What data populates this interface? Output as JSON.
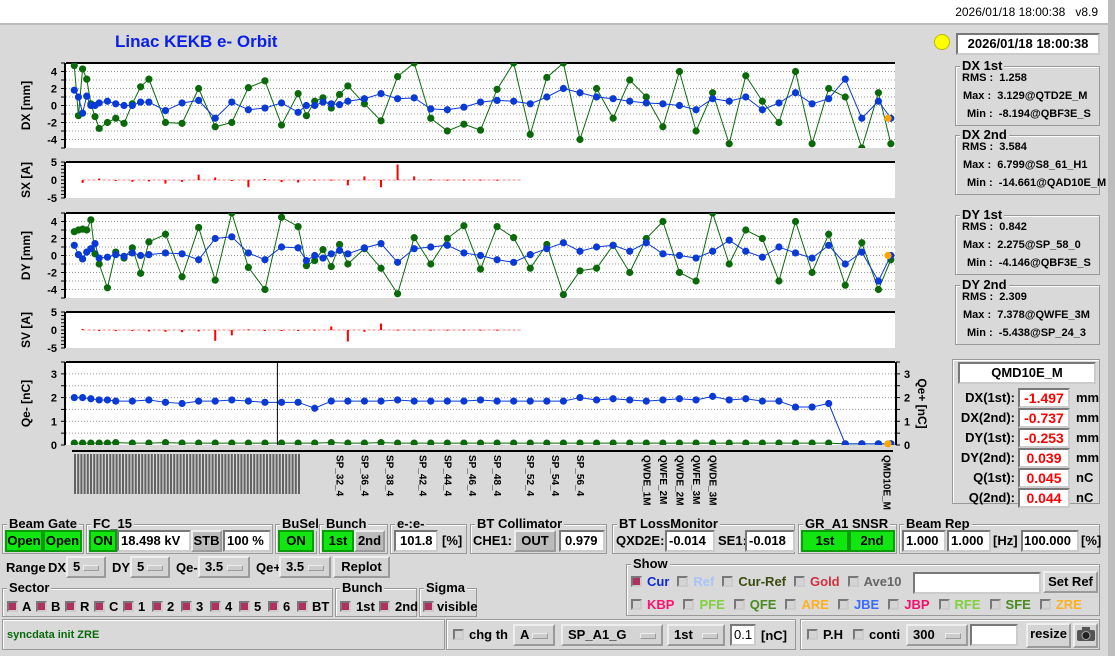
{
  "header": {
    "timestamp": "2026/01/18 18:00:38",
    "version": "v8.9"
  },
  "title": "Linac KEKB e- Orbit",
  "status_lamp_color": "#ffff00",
  "timestamp_box": "2026/01/18 18:00:38",
  "stats": [
    {
      "title": "DX 1st",
      "rms": "1.258",
      "max": "3.129@QTD2E_M",
      "min": "-8.194@QBF3E_S"
    },
    {
      "title": "DX 2nd",
      "rms": "3.584",
      "max": "6.799@S8_61_H1",
      "min": "-14.661@QAD10E_M"
    },
    {
      "title": "DY 1st",
      "rms": "0.842",
      "max": "2.275@SP_58_0",
      "min": "-4.146@QBF3E_S"
    },
    {
      "title": "DY 2nd",
      "rms": "2.309",
      "max": "7.378@QWFE_3M",
      "min": "-5.438@SP_24_3"
    }
  ],
  "stat_labels": {
    "rms": "RMS :",
    "max": "Max :",
    "min": "Min :"
  },
  "monitor": {
    "name": "QMD10E_M",
    "rows": [
      {
        "label": "DX(1st):",
        "value": "-1.497",
        "unit": "mm"
      },
      {
        "label": "DX(2nd):",
        "value": "-0.737",
        "unit": "mm"
      },
      {
        "label": "DY(1st):",
        "value": "-0.253",
        "unit": "mm"
      },
      {
        "label": "DY(2nd):",
        "value": "0.039",
        "unit": "mm"
      },
      {
        "label": "Q(1st):",
        "value": "0.045",
        "unit": "nC"
      },
      {
        "label": "Q(2nd):",
        "value": "0.044",
        "unit": "nC"
      }
    ]
  },
  "chart_data": [
    {
      "type": "line",
      "id": "dx",
      "ylabel": "DX [mm]",
      "ylim": [
        -5,
        5
      ],
      "yticks": [
        -4,
        -2,
        0,
        2,
        4
      ],
      "grid": true,
      "xlim": [
        0,
        100
      ],
      "x": [
        1,
        1.5,
        2,
        2.5,
        3,
        3.5,
        4,
        5,
        6,
        7,
        8,
        9,
        10,
        12,
        14,
        16,
        18,
        20,
        22,
        24,
        26,
        28,
        29,
        30,
        31,
        32,
        33,
        34,
        36,
        38,
        40,
        42,
        44,
        46,
        48,
        50,
        52,
        54,
        56,
        58,
        60,
        62,
        64,
        66,
        68,
        70,
        72,
        74,
        76,
        78,
        80,
        82,
        84,
        86,
        88,
        90,
        92,
        94,
        96,
        98,
        99.5
      ],
      "series": [
        {
          "color": "#0a3ad6",
          "values": [
            1.8,
            1,
            -0.9,
            1.1,
            0,
            0,
            0.3,
            0.5,
            0.2,
            0,
            0,
            0.4,
            0.4,
            -0.6,
            0.3,
            0.6,
            -1.5,
            0.4,
            -0.5,
            -0.3,
            0.3,
            -0.8,
            0,
            0,
            0.4,
            0.2,
            0.1,
            0.5,
            0.8,
            1.4,
            0.8,
            0.9,
            -0.4,
            -0.5,
            -0.2,
            0.4,
            0.6,
            0.5,
            0.2,
            1,
            2,
            1.5,
            1,
            0.8,
            0.5,
            0.3,
            0.2,
            0,
            -0.5,
            0.8,
            0.5,
            1,
            -0.5,
            0.3,
            1.5,
            0.2,
            0.8,
            3.1,
            -1.5,
            0.5,
            -1.5
          ]
        },
        {
          "color": "#0a6a0a",
          "values": [
            4.7,
            -1.2,
            4.3,
            3.1,
            0.2,
            -1.3,
            -2.7,
            -2,
            -1.5,
            -2.1,
            0.2,
            2.2,
            3.1,
            -2,
            -2.1,
            2,
            -2.5,
            -2,
            2.1,
            2.9,
            -2.3,
            1.4,
            -1.2,
            0.5,
            0.9,
            -0.3,
            1.3,
            2.3,
            0.2,
            -1.8,
            3.4,
            5,
            -1.5,
            -3,
            -2.2,
            -2.9,
            1.9,
            5,
            -3.4,
            3.3,
            5,
            -4,
            2,
            -1.5,
            3,
            1,
            -2.5,
            4,
            -3,
            1.5,
            -4.5,
            3.5,
            0.5,
            -2,
            4,
            -4.5,
            2,
            1,
            -5,
            1.5,
            -4.5
          ]
        }
      ]
    },
    {
      "type": "bar",
      "id": "sx",
      "ylabel": "SX [A]",
      "ylim": [
        -5,
        5
      ],
      "yticks": [
        -5,
        0,
        5
      ],
      "xlim": [
        0,
        100
      ],
      "x": [
        2,
        4,
        6,
        8,
        10,
        12,
        14,
        16,
        18,
        20,
        22,
        24,
        26,
        28,
        30,
        32,
        34,
        36,
        38,
        40,
        42,
        44,
        46,
        48,
        50,
        52,
        54,
        56,
        58,
        60,
        62,
        64,
        66,
        68,
        70,
        72,
        74,
        76,
        78,
        80,
        82,
        84,
        86,
        88,
        90,
        92,
        94,
        96,
        98
      ],
      "series": [
        {
          "color": "#ff0000",
          "values": [
            -0.8,
            0.4,
            -0.2,
            -0.5,
            -0.4,
            -1,
            -0.5,
            1.5,
            0.7,
            -0.2,
            -2,
            0.3,
            -0.6,
            -0.7,
            0.1,
            0.1,
            -1.5,
            1,
            -2,
            4.3,
            1,
            0.2,
            0.1,
            0.1,
            0.1,
            0.1,
            0,
            0,
            0,
            0,
            0,
            0,
            0,
            0,
            0,
            0,
            0,
            0,
            0,
            0,
            0,
            0,
            0,
            0,
            0,
            0,
            0,
            0,
            0
          ]
        }
      ]
    },
    {
      "type": "line",
      "id": "dy",
      "ylabel": "DY [mm]",
      "ylim": [
        -5,
        5
      ],
      "yticks": [
        -4,
        -2,
        0,
        2,
        4
      ],
      "grid": true,
      "xlim": [
        0,
        100
      ],
      "x": [
        1,
        1.5,
        2,
        2.5,
        3,
        3.5,
        4,
        5,
        6,
        7,
        8,
        9,
        10,
        12,
        14,
        16,
        18,
        20,
        22,
        24,
        26,
        28,
        29,
        30,
        31,
        32,
        33,
        34,
        36,
        38,
        40,
        42,
        44,
        46,
        48,
        50,
        52,
        54,
        56,
        58,
        60,
        62,
        64,
        66,
        68,
        70,
        72,
        74,
        76,
        78,
        80,
        82,
        84,
        86,
        88,
        90,
        92,
        94,
        96,
        98,
        99.5
      ],
      "series": [
        {
          "color": "#0a3ad6",
          "values": [
            1.2,
            0.1,
            -0.4,
            0.4,
            0.8,
            1.4,
            -0.3,
            -0.2,
            0.1,
            -0.1,
            0.3,
            0,
            0.1,
            0.3,
            0.2,
            -0.5,
            2,
            2.2,
            0.3,
            -0.5,
            1,
            0.9,
            -0.6,
            0,
            -0.3,
            0.2,
            0.6,
            0.2,
            0.9,
            1.4,
            -0.8,
            0.8,
            1,
            1.2,
            0.3,
            0,
            -0.5,
            -0.8,
            0.1,
            0.8,
            1.5,
            0.5,
            1,
            1.2,
            0.5,
            1.5,
            0.2,
            0,
            -0.3,
            0.5,
            1.8,
            0.5,
            -0.2,
            1,
            0.3,
            -0.3,
            1.2,
            -1,
            0.4,
            -3,
            0
          ]
        },
        {
          "color": "#0a6a0a",
          "values": [
            2.8,
            3,
            3.1,
            3,
            4.2,
            0.2,
            -1,
            -3.8,
            0.4,
            -0.3,
            0.9,
            -2.1,
            1.6,
            2.5,
            -2.5,
            3.3,
            -2.9,
            5,
            -1.4,
            -4,
            4.5,
            3.4,
            -1.2,
            -0.6,
            0.7,
            -1.3,
            1.3,
            -1,
            0.8,
            -1.5,
            -4.5,
            2.1,
            -1,
            2,
            3.5,
            -1.6,
            3.4,
            2.1,
            -1.5,
            1.3,
            -4.6,
            -1.8,
            -1.5,
            1.2,
            -2,
            2,
            4,
            -2,
            -3,
            5,
            -1,
            3,
            2,
            -3,
            4,
            -2,
            2.5,
            -3.5,
            1.5,
            -4,
            -0.5
          ]
        }
      ]
    },
    {
      "type": "bar",
      "id": "sv",
      "ylabel": "SV [A]",
      "ylim": [
        -5,
        5
      ],
      "yticks": [
        -5,
        0,
        5
      ],
      "xlim": [
        0,
        100
      ],
      "x": [
        2,
        4,
        6,
        8,
        10,
        12,
        14,
        16,
        18,
        20,
        22,
        24,
        26,
        28,
        30,
        32,
        34,
        36,
        38,
        40,
        42,
        44,
        46,
        48,
        50,
        52,
        54,
        56,
        58,
        60,
        62,
        64,
        66,
        68,
        70,
        72,
        74,
        76,
        78,
        80,
        82,
        84,
        86,
        88,
        90,
        92,
        94,
        96,
        98
      ],
      "series": [
        {
          "color": "#ff0000",
          "values": [
            0.3,
            -0.2,
            -0.3,
            -0.3,
            -0.4,
            -0.5,
            -0.6,
            -0.4,
            -3,
            -1.5,
            0.2,
            -0.2,
            -0.1,
            -0.1,
            0.1,
            1,
            -3.2,
            -0.5,
            1.8,
            0.1,
            0.1,
            0.1,
            0.1,
            0.1,
            0.1,
            0.1,
            0,
            0,
            0,
            0,
            0,
            0,
            0,
            0,
            0,
            0,
            0,
            0,
            0,
            0,
            0,
            0,
            0,
            0,
            0,
            0,
            0,
            0,
            0
          ]
        }
      ]
    },
    {
      "type": "line",
      "id": "q",
      "ylabel": "Qe- [nC]",
      "ylabel_right": "Qe+ [nC]",
      "ylim": [
        0,
        3.5
      ],
      "yticks": [
        0,
        1,
        2,
        3
      ],
      "grid": true,
      "xlim": [
        0,
        100
      ],
      "x": [
        1,
        2,
        3,
        4,
        5,
        6,
        8,
        10,
        12,
        14,
        16,
        18,
        20,
        22,
        24,
        26,
        28,
        30,
        32,
        34,
        36,
        38,
        40,
        42,
        44,
        46,
        48,
        50,
        52,
        54,
        56,
        58,
        60,
        62,
        64,
        66,
        68,
        70,
        72,
        74,
        76,
        78,
        80,
        82,
        84,
        86,
        88,
        90,
        92,
        94,
        96,
        98,
        99.5
      ],
      "series": [
        {
          "color": "#0a3ad6",
          "values": [
            2,
            2,
            1.95,
            1.9,
            1.9,
            1.85,
            1.85,
            1.9,
            1.8,
            1.75,
            1.85,
            1.85,
            1.9,
            1.85,
            1.8,
            1.8,
            1.8,
            1.55,
            1.85,
            1.85,
            1.85,
            1.85,
            1.9,
            1.85,
            1.85,
            1.85,
            1.85,
            1.9,
            1.85,
            1.85,
            1.85,
            1.85,
            1.85,
            2,
            1.9,
            1.95,
            1.9,
            1.85,
            1.9,
            1.95,
            1.9,
            2.05,
            1.9,
            1.95,
            1.85,
            1.85,
            1.6,
            1.6,
            1.75,
            0.05,
            0.05,
            0.05,
            0.05
          ]
        },
        {
          "color": "#0a6a0a",
          "values": [
            0.08,
            0.08,
            0.08,
            0.08,
            0.08,
            0.1,
            0.08,
            0.08,
            0.1,
            0.08,
            0.08,
            0.08,
            0.08,
            0.08,
            0.08,
            0.08,
            0.08,
            0.08,
            0.1,
            0.08,
            0.08,
            0.1,
            0.08,
            0.08,
            0.08,
            0.08,
            0.08,
            0.08,
            0.08,
            0.08,
            0.08,
            0.08,
            0.08,
            0.08,
            0.08,
            0.08,
            0.08,
            0.08,
            0.08,
            0.08,
            0.08,
            0.08,
            0.08,
            0.08,
            0.08,
            0.08,
            0.08,
            0.08,
            0.08,
            0.05,
            0.05,
            0.05,
            0.05
          ]
        }
      ],
      "cursor_x": 25.5,
      "xtick_labels": [
        "SP_32_4",
        "SP_36_4",
        "SP_38_4",
        "SP_42_4",
        "SP_44_4",
        "SP_46_4",
        "SP_48_4",
        "SP_52_4",
        "SP_54_4",
        "SP_56_4",
        "QWDE_1M",
        "QWFE_2M",
        "QWDE_2M",
        "QWFE_3M",
        "QWDE_3M",
        "QMD10E_M"
      ],
      "xtick_positions": [
        33,
        36,
        39,
        43,
        46,
        49,
        52,
        56,
        59,
        62,
        70,
        72,
        74,
        76,
        78,
        99
      ]
    }
  ],
  "controls": {
    "beam_gate": {
      "label": "Beam Gate",
      "b1": "Open",
      "b2": "Open"
    },
    "fc15": {
      "label": "FC_15",
      "on": "ON",
      "kv": "18.498 kV",
      "stb": "STB",
      "pct": "100 %"
    },
    "busel": {
      "label": "BuSel",
      "on": "ON"
    },
    "bunch": {
      "label": "Bunch",
      "first": "1st",
      "second": "2nd"
    },
    "ee": {
      "label": "e-:e-",
      "value": "101.8",
      "unit": "[%]"
    },
    "btcol": {
      "label": "BT Collimator",
      "che": "CHE1:",
      "out": "OUT",
      "value": "0.979"
    },
    "btloss": {
      "label": "BT LossMonitor",
      "q_label": "QXD2E:",
      "q_value": "-0.014",
      "se_label": "SE1:",
      "se_value": "-0.018"
    },
    "gr": {
      "label": "GR_A1  SNSR",
      "first": "1st",
      "second": "2nd"
    },
    "rep": {
      "label": "Beam Rep",
      "v1": "1.000",
      "v2": "1.000",
      "hz": "[Hz]",
      "pct": "100.000",
      "pct_unit": "[%]"
    },
    "range": {
      "label": "Range",
      "dx_label": "DX",
      "dx": "5",
      "dy_label": "DY",
      "dy": "5",
      "qem_label": "Qe-",
      "qem": "3.5",
      "qep_label": "Qe+",
      "qep": "3.5",
      "replot": "Replot"
    },
    "sector": {
      "label": "Sector",
      "items": [
        "A",
        "B",
        "R",
        "C",
        "1",
        "2",
        "3",
        "4",
        "5",
        "6",
        "BT"
      ]
    },
    "bunch2": {
      "label": "Bunch",
      "first": "1st",
      "second": "2nd"
    },
    "sigma": {
      "label": "Sigma",
      "visible": "visible"
    },
    "show": {
      "label": "Show",
      "row1": [
        {
          "t": "Cur",
          "c": "#0a2ad0",
          "on": true
        },
        {
          "t": "Ref",
          "c": "#a9c4f5",
          "on": false
        },
        {
          "t": "Cur-Ref",
          "c": "#3a4a10",
          "on": false
        },
        {
          "t": "Gold",
          "c": "#d03040",
          "on": false
        },
        {
          "t": "Ave10",
          "c": "#666666",
          "on": false
        }
      ],
      "row2": [
        {
          "t": "KBP",
          "c": "#ff1070"
        },
        {
          "t": "PFE",
          "c": "#80d040"
        },
        {
          "t": "QFE",
          "c": "#4a8a20"
        },
        {
          "t": "ARE",
          "c": "#ffb020"
        },
        {
          "t": "JBE",
          "c": "#3a6aff"
        },
        {
          "t": "JBP",
          "c": "#f01070"
        },
        {
          "t": "RFE",
          "c": "#80d040"
        },
        {
          "t": "SFE",
          "c": "#4a8a20"
        },
        {
          "t": "ZRE",
          "c": "#ffb020"
        }
      ],
      "ref_input": "",
      "set_ref": "Set Ref"
    },
    "status_text": "syncdata init ZRE",
    "chg": {
      "label": "chg th",
      "sel1": "A",
      "sel2": "SP_A1_G",
      "sel3": "1st",
      "value": "0.1",
      "unit": "[nC]"
    },
    "ph": {
      "ph_label": "P.H",
      "conti_label": "conti",
      "sel": "300",
      "input": "",
      "resize": "resize"
    }
  }
}
